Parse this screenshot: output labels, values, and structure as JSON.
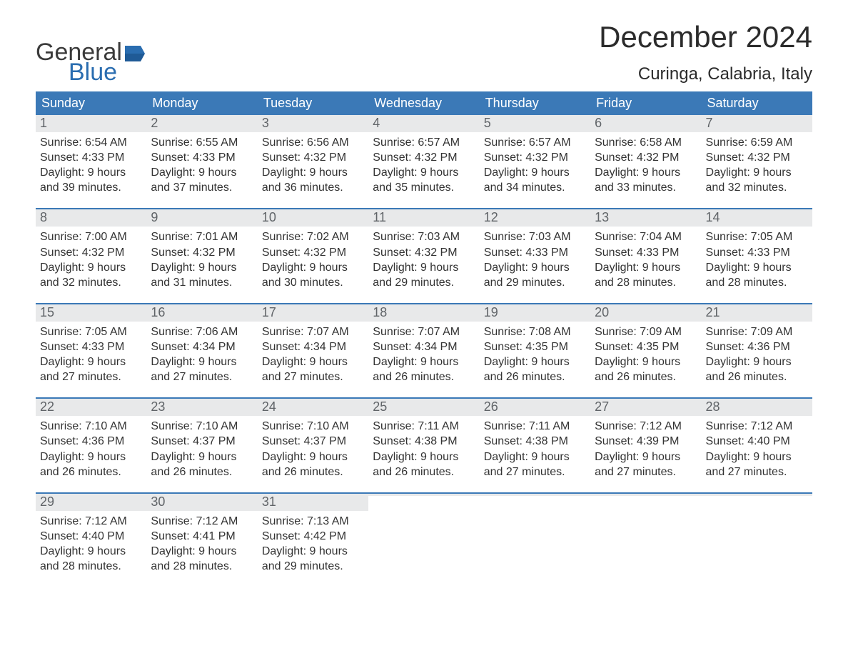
{
  "brand": {
    "word1": "General",
    "word2": "Blue",
    "flag_color": "#2a6db0"
  },
  "title": "December 2024",
  "location": "Curinga, Calabria, Italy",
  "colors": {
    "header_bg": "#3b79b7",
    "header_text": "#ffffff",
    "daynum_bg": "#e8e9ea",
    "daynum_text": "#606468",
    "body_text": "#333333",
    "week_rule": "#3b79b7"
  },
  "typography": {
    "title_fontsize": 42,
    "location_fontsize": 24,
    "dayhead_fontsize": 18,
    "daynum_fontsize": 18,
    "body_fontsize": 16
  },
  "day_headers": [
    "Sunday",
    "Monday",
    "Tuesday",
    "Wednesday",
    "Thursday",
    "Friday",
    "Saturday"
  ],
  "weeks": [
    [
      {
        "n": "1",
        "sunrise": "Sunrise: 6:54 AM",
        "sunset": "Sunset: 4:33 PM",
        "d1": "Daylight: 9 hours",
        "d2": "and 39 minutes."
      },
      {
        "n": "2",
        "sunrise": "Sunrise: 6:55 AM",
        "sunset": "Sunset: 4:33 PM",
        "d1": "Daylight: 9 hours",
        "d2": "and 37 minutes."
      },
      {
        "n": "3",
        "sunrise": "Sunrise: 6:56 AM",
        "sunset": "Sunset: 4:32 PM",
        "d1": "Daylight: 9 hours",
        "d2": "and 36 minutes."
      },
      {
        "n": "4",
        "sunrise": "Sunrise: 6:57 AM",
        "sunset": "Sunset: 4:32 PM",
        "d1": "Daylight: 9 hours",
        "d2": "and 35 minutes."
      },
      {
        "n": "5",
        "sunrise": "Sunrise: 6:57 AM",
        "sunset": "Sunset: 4:32 PM",
        "d1": "Daylight: 9 hours",
        "d2": "and 34 minutes."
      },
      {
        "n": "6",
        "sunrise": "Sunrise: 6:58 AM",
        "sunset": "Sunset: 4:32 PM",
        "d1": "Daylight: 9 hours",
        "d2": "and 33 minutes."
      },
      {
        "n": "7",
        "sunrise": "Sunrise: 6:59 AM",
        "sunset": "Sunset: 4:32 PM",
        "d1": "Daylight: 9 hours",
        "d2": "and 32 minutes."
      }
    ],
    [
      {
        "n": "8",
        "sunrise": "Sunrise: 7:00 AM",
        "sunset": "Sunset: 4:32 PM",
        "d1": "Daylight: 9 hours",
        "d2": "and 32 minutes."
      },
      {
        "n": "9",
        "sunrise": "Sunrise: 7:01 AM",
        "sunset": "Sunset: 4:32 PM",
        "d1": "Daylight: 9 hours",
        "d2": "and 31 minutes."
      },
      {
        "n": "10",
        "sunrise": "Sunrise: 7:02 AM",
        "sunset": "Sunset: 4:32 PM",
        "d1": "Daylight: 9 hours",
        "d2": "and 30 minutes."
      },
      {
        "n": "11",
        "sunrise": "Sunrise: 7:03 AM",
        "sunset": "Sunset: 4:32 PM",
        "d1": "Daylight: 9 hours",
        "d2": "and 29 minutes."
      },
      {
        "n": "12",
        "sunrise": "Sunrise: 7:03 AM",
        "sunset": "Sunset: 4:33 PM",
        "d1": "Daylight: 9 hours",
        "d2": "and 29 minutes."
      },
      {
        "n": "13",
        "sunrise": "Sunrise: 7:04 AM",
        "sunset": "Sunset: 4:33 PM",
        "d1": "Daylight: 9 hours",
        "d2": "and 28 minutes."
      },
      {
        "n": "14",
        "sunrise": "Sunrise: 7:05 AM",
        "sunset": "Sunset: 4:33 PM",
        "d1": "Daylight: 9 hours",
        "d2": "and 28 minutes."
      }
    ],
    [
      {
        "n": "15",
        "sunrise": "Sunrise: 7:05 AM",
        "sunset": "Sunset: 4:33 PM",
        "d1": "Daylight: 9 hours",
        "d2": "and 27 minutes."
      },
      {
        "n": "16",
        "sunrise": "Sunrise: 7:06 AM",
        "sunset": "Sunset: 4:34 PM",
        "d1": "Daylight: 9 hours",
        "d2": "and 27 minutes."
      },
      {
        "n": "17",
        "sunrise": "Sunrise: 7:07 AM",
        "sunset": "Sunset: 4:34 PM",
        "d1": "Daylight: 9 hours",
        "d2": "and 27 minutes."
      },
      {
        "n": "18",
        "sunrise": "Sunrise: 7:07 AM",
        "sunset": "Sunset: 4:34 PM",
        "d1": "Daylight: 9 hours",
        "d2": "and 26 minutes."
      },
      {
        "n": "19",
        "sunrise": "Sunrise: 7:08 AM",
        "sunset": "Sunset: 4:35 PM",
        "d1": "Daylight: 9 hours",
        "d2": "and 26 minutes."
      },
      {
        "n": "20",
        "sunrise": "Sunrise: 7:09 AM",
        "sunset": "Sunset: 4:35 PM",
        "d1": "Daylight: 9 hours",
        "d2": "and 26 minutes."
      },
      {
        "n": "21",
        "sunrise": "Sunrise: 7:09 AM",
        "sunset": "Sunset: 4:36 PM",
        "d1": "Daylight: 9 hours",
        "d2": "and 26 minutes."
      }
    ],
    [
      {
        "n": "22",
        "sunrise": "Sunrise: 7:10 AM",
        "sunset": "Sunset: 4:36 PM",
        "d1": "Daylight: 9 hours",
        "d2": "and 26 minutes."
      },
      {
        "n": "23",
        "sunrise": "Sunrise: 7:10 AM",
        "sunset": "Sunset: 4:37 PM",
        "d1": "Daylight: 9 hours",
        "d2": "and 26 minutes."
      },
      {
        "n": "24",
        "sunrise": "Sunrise: 7:10 AM",
        "sunset": "Sunset: 4:37 PM",
        "d1": "Daylight: 9 hours",
        "d2": "and 26 minutes."
      },
      {
        "n": "25",
        "sunrise": "Sunrise: 7:11 AM",
        "sunset": "Sunset: 4:38 PM",
        "d1": "Daylight: 9 hours",
        "d2": "and 26 minutes."
      },
      {
        "n": "26",
        "sunrise": "Sunrise: 7:11 AM",
        "sunset": "Sunset: 4:38 PM",
        "d1": "Daylight: 9 hours",
        "d2": "and 27 minutes."
      },
      {
        "n": "27",
        "sunrise": "Sunrise: 7:12 AM",
        "sunset": "Sunset: 4:39 PM",
        "d1": "Daylight: 9 hours",
        "d2": "and 27 minutes."
      },
      {
        "n": "28",
        "sunrise": "Sunrise: 7:12 AM",
        "sunset": "Sunset: 4:40 PM",
        "d1": "Daylight: 9 hours",
        "d2": "and 27 minutes."
      }
    ],
    [
      {
        "n": "29",
        "sunrise": "Sunrise: 7:12 AM",
        "sunset": "Sunset: 4:40 PM",
        "d1": "Daylight: 9 hours",
        "d2": "and 28 minutes."
      },
      {
        "n": "30",
        "sunrise": "Sunrise: 7:12 AM",
        "sunset": "Sunset: 4:41 PM",
        "d1": "Daylight: 9 hours",
        "d2": "and 28 minutes."
      },
      {
        "n": "31",
        "sunrise": "Sunrise: 7:13 AM",
        "sunset": "Sunset: 4:42 PM",
        "d1": "Daylight: 9 hours",
        "d2": "and 29 minutes."
      },
      {
        "empty": true
      },
      {
        "empty": true
      },
      {
        "empty": true
      },
      {
        "empty": true
      }
    ]
  ]
}
